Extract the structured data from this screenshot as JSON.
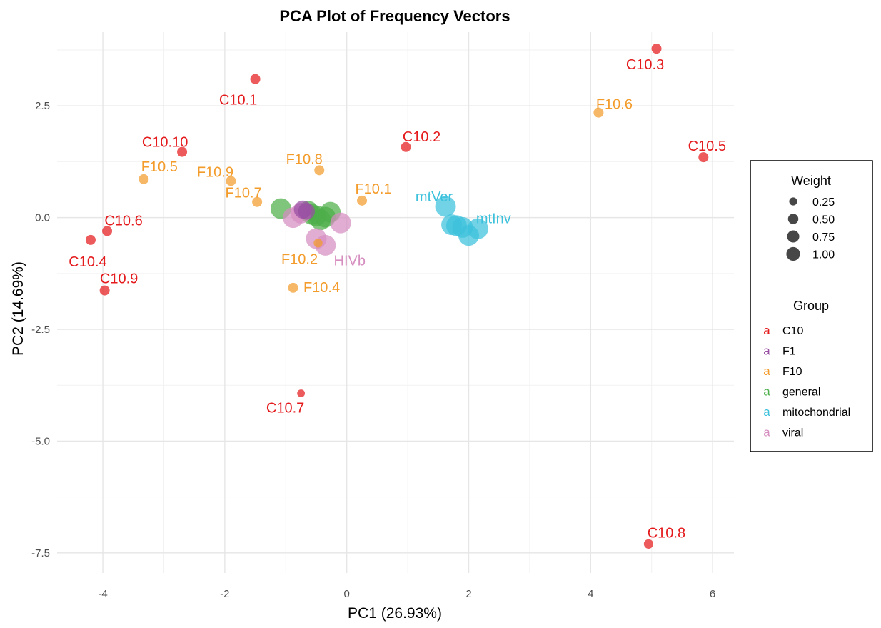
{
  "chart_data": {
    "type": "scatter",
    "title": "PCA Plot of Frequency Vectors",
    "xlabel": "PC1 (26.93%)",
    "ylabel": "PC2 (14.69%)",
    "xlim": [
      -4.75,
      6.35
    ],
    "ylim": [
      -7.95,
      4.15
    ],
    "xticks": [
      -4,
      -2,
      0,
      2,
      4,
      6
    ],
    "xtick_labels": [
      "-4",
      "-2",
      "0",
      "2",
      "4",
      "6"
    ],
    "yticks": [
      2.5,
      0.0,
      -2.5,
      -5.0,
      -7.5
    ],
    "ytick_labels": [
      "2.5",
      "0.0",
      "-2.5",
      "-5.0",
      "-7.5"
    ],
    "grid": true,
    "legend_position": "right",
    "groups": [
      {
        "name": "C10",
        "color": "#E41A1C"
      },
      {
        "name": "F1",
        "color": "#984EA3"
      },
      {
        "name": "F10",
        "color": "#F39C2B"
      },
      {
        "name": "general",
        "color": "#4DAF4A"
      },
      {
        "name": "mitochondrial",
        "color": "#3BC1DC"
      },
      {
        "name": "viral",
        "color": "#D68EC0"
      }
    ],
    "size_legend": {
      "title": "Weight",
      "breaks": [
        0.25,
        0.5,
        0.75,
        1.0
      ],
      "labels": [
        "0.25",
        "0.50",
        "0.75",
        "1.00"
      ]
    },
    "color_legend_title": "Group",
    "points": [
      {
        "x": 5.08,
        "y": 3.78,
        "group": "C10",
        "weight": 0.12,
        "label": "C10.3"
      },
      {
        "x": -1.5,
        "y": 3.1,
        "group": "C10",
        "weight": 0.12,
        "label": "C10.1"
      },
      {
        "x": 0.97,
        "y": 1.58,
        "group": "C10",
        "weight": 0.12,
        "label": "C10.2"
      },
      {
        "x": 5.85,
        "y": 1.35,
        "group": "C10",
        "weight": 0.12,
        "label": "C10.5"
      },
      {
        "x": -2.7,
        "y": 1.47,
        "group": "C10",
        "weight": 0.12,
        "label": "C10.10"
      },
      {
        "x": -3.93,
        "y": -0.3,
        "group": "C10",
        "weight": 0.12,
        "label": "C10.6"
      },
      {
        "x": -4.2,
        "y": -0.5,
        "group": "C10",
        "weight": 0.12,
        "label": "C10.4"
      },
      {
        "x": -3.97,
        "y": -1.63,
        "group": "C10",
        "weight": 0.12,
        "label": "C10.9"
      },
      {
        "x": -0.75,
        "y": -3.93,
        "group": "C10",
        "weight": 0.05,
        "label": "C10.7"
      },
      {
        "x": 4.95,
        "y": -7.3,
        "group": "C10",
        "weight": 0.1,
        "label": "C10.8"
      },
      {
        "x": 4.13,
        "y": 2.35,
        "group": "F10",
        "weight": 0.12,
        "label": "F10.6"
      },
      {
        "x": -0.45,
        "y": 1.06,
        "group": "F10",
        "weight": 0.12,
        "label": "F10.8"
      },
      {
        "x": -3.33,
        "y": 0.86,
        "group": "F10",
        "weight": 0.12,
        "label": "F10.5"
      },
      {
        "x": -1.9,
        "y": 0.82,
        "group": "F10",
        "weight": 0.12,
        "label": "F10.9"
      },
      {
        "x": -1.47,
        "y": 0.35,
        "group": "F10",
        "weight": 0.12,
        "label": "F10.7"
      },
      {
        "x": 0.25,
        "y": 0.38,
        "group": "F10",
        "weight": 0.12,
        "label": "F10.1"
      },
      {
        "x": -0.47,
        "y": -0.57,
        "group": "F10",
        "weight": 0.08,
        "label": "F10.2"
      },
      {
        "x": -0.88,
        "y": -1.57,
        "group": "F10",
        "weight": 0.12,
        "label": "F10.4"
      },
      {
        "x": -0.72,
        "y": 0.18,
        "group": "F1",
        "weight": 0.6,
        "label": ""
      },
      {
        "x": -0.66,
        "y": 0.14,
        "group": "F1",
        "weight": 0.5,
        "label": ""
      },
      {
        "x": -1.08,
        "y": 0.2,
        "group": "general",
        "weight": 0.85,
        "label": ""
      },
      {
        "x": -0.63,
        "y": 0.14,
        "group": "general",
        "weight": 0.85,
        "label": ""
      },
      {
        "x": -0.57,
        "y": 0.07,
        "group": "general",
        "weight": 0.85,
        "label": ""
      },
      {
        "x": -0.5,
        "y": 0.04,
        "group": "general",
        "weight": 0.85,
        "label": ""
      },
      {
        "x": -0.43,
        "y": -0.05,
        "group": "general",
        "weight": 0.85,
        "label": ""
      },
      {
        "x": -0.35,
        "y": 0.01,
        "group": "general",
        "weight": 0.85,
        "label": ""
      },
      {
        "x": -0.27,
        "y": 0.12,
        "group": "general",
        "weight": 0.85,
        "label": ""
      },
      {
        "x": 1.62,
        "y": 0.25,
        "group": "mitochondrial",
        "weight": 0.85,
        "label": "mtVer"
      },
      {
        "x": 1.72,
        "y": -0.16,
        "group": "mitochondrial",
        "weight": 0.85,
        "label": ""
      },
      {
        "x": 1.8,
        "y": -0.18,
        "group": "mitochondrial",
        "weight": 0.85,
        "label": ""
      },
      {
        "x": 1.9,
        "y": -0.22,
        "group": "mitochondrial",
        "weight": 0.85,
        "label": ""
      },
      {
        "x": 2.0,
        "y": -0.4,
        "group": "mitochondrial",
        "weight": 0.85,
        "label": ""
      },
      {
        "x": 2.15,
        "y": -0.25,
        "group": "mitochondrial",
        "weight": 0.85,
        "label": "mtInv"
      },
      {
        "x": -0.88,
        "y": 0.0,
        "group": "viral",
        "weight": 0.85,
        "label": ""
      },
      {
        "x": -0.75,
        "y": 0.1,
        "group": "viral",
        "weight": 0.85,
        "label": ""
      },
      {
        "x": -0.1,
        "y": -0.12,
        "group": "viral",
        "weight": 0.85,
        "label": ""
      },
      {
        "x": -0.5,
        "y": -0.47,
        "group": "viral",
        "weight": 0.85,
        "label": ""
      },
      {
        "x": -0.35,
        "y": -0.62,
        "group": "viral",
        "weight": 0.85,
        "label": "HIVb"
      }
    ]
  }
}
